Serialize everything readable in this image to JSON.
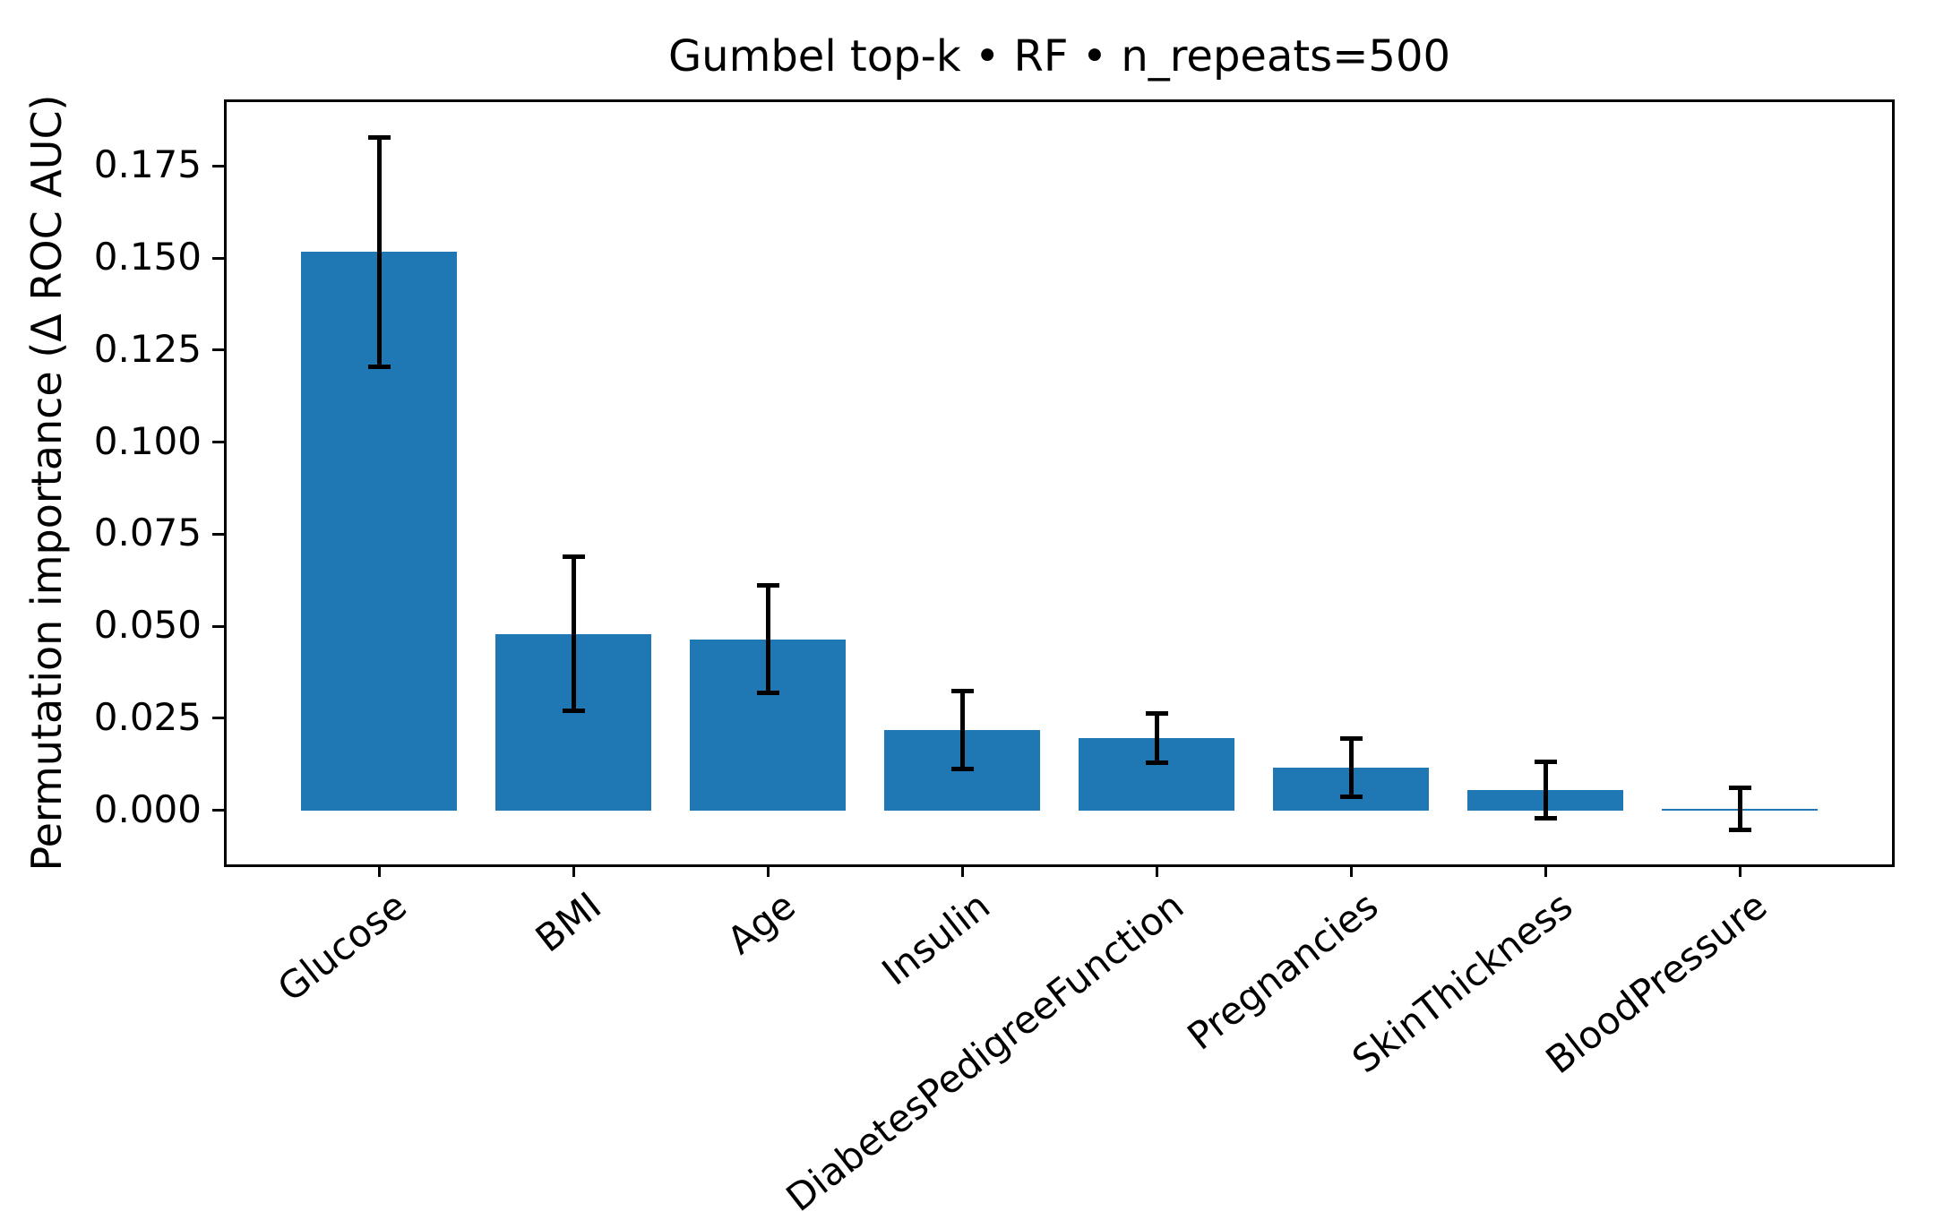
{
  "figure": {
    "background": "#ffffff",
    "text_color": "#000000"
  },
  "chart_data": {
    "type": "bar",
    "title": "Gumbel top-k • RF • n_repeats=500",
    "xlabel": "",
    "ylabel": "Permutation importance (Δ ROC AUC)",
    "categories": [
      "Glucose",
      "BMI",
      "Age",
      "Insulin",
      "DiabetesPedigreeFunction",
      "Pregnancies",
      "SkinThickness",
      "BloodPressure"
    ],
    "values": [
      0.1517,
      0.0479,
      0.0465,
      0.0218,
      0.0196,
      0.0116,
      0.0055,
      0.0004
    ],
    "error_bars": [
      0.0312,
      0.0209,
      0.0147,
      0.0106,
      0.0068,
      0.008,
      0.0077,
      0.0057
    ],
    "ytick_labels": [
      "0.000",
      "0.025",
      "0.050",
      "0.075",
      "0.100",
      "0.125",
      "0.150",
      "0.175"
    ],
    "ylim": [
      -0.0147,
      0.1924
    ],
    "bar_color": "#1f77b4",
    "error_color": "#000000",
    "grid": false,
    "legend_position": "none",
    "x_tick_rotation_deg": 38
  }
}
